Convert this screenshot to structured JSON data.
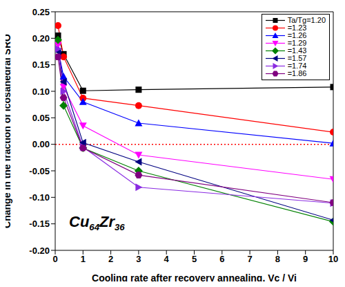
{
  "chart_data": {
    "type": "line",
    "annotation": "Cu64Zr36",
    "xlabel": "Cooling rate after recovery annealing, Vc / Vi",
    "ylabel": "Change in the fraction of icosahedral SRO",
    "x": [
      0.1,
      0.3,
      1,
      3,
      10
    ],
    "xlim": [
      0,
      10
    ],
    "xticks": [
      0,
      1,
      2,
      3,
      4,
      5,
      6,
      7,
      8,
      9,
      10
    ],
    "ylim": [
      -0.2,
      0.25
    ],
    "yticks": [
      {
        "value": -0.2,
        "label": "-0.20"
      },
      {
        "value": -0.15,
        "label": "-0.15"
      },
      {
        "value": -0.1,
        "label": "-0.10"
      },
      {
        "value": -0.05,
        "label": "-0.05"
      },
      {
        "value": 0,
        "label": "0.00"
      },
      {
        "value": 0.05,
        "label": "0.05"
      },
      {
        "value": 0.1,
        "label": "0.10"
      },
      {
        "value": 0.15,
        "label": "0.15"
      },
      {
        "value": 0.2,
        "label": "0.20"
      },
      {
        "value": 0.25,
        "label": "0.25"
      }
    ],
    "hlines": [
      {
        "value": 0,
        "color": "#ff0000",
        "line_style": "dotted"
      }
    ],
    "legend": "upper right",
    "series": [
      {
        "name": "Ta/Tg=1.20",
        "color": "#000000",
        "marker": "square",
        "values": [
          0.205,
          0.17,
          0.101,
          0.103,
          0.108
        ]
      },
      {
        "name": "=1.23",
        "color": "#ff0000",
        "marker": "circle",
        "values": [
          0.224,
          0.165,
          0.087,
          0.073,
          0.023
        ]
      },
      {
        "name": "=1.26",
        "color": "#0000ff",
        "marker": "triangle-up",
        "values": [
          0.18,
          0.128,
          0.08,
          0.04,
          0.002
        ]
      },
      {
        "name": "=1.29",
        "color": "#ff00ff",
        "marker": "triangle-down",
        "values": [
          0.187,
          0.108,
          0.035,
          -0.02,
          -0.066
        ]
      },
      {
        "name": "=1.43",
        "color": "#008000",
        "marker": "diamond",
        "values": [
          0.197,
          0.073,
          -0.007,
          -0.05,
          -0.146
        ]
      },
      {
        "name": "=1.57",
        "color": "#000080",
        "marker": "triangle-left",
        "values": [
          0.175,
          0.118,
          0.003,
          -0.033,
          -0.143
        ]
      },
      {
        "name": "=1.74",
        "color": "#8a2be2",
        "marker": "triangle-right",
        "values": [
          0.18,
          0.1,
          -0.005,
          -0.081,
          -0.111
        ]
      },
      {
        "name": "=1.86",
        "color": "#800080",
        "marker": "hexagon",
        "values": [
          0.165,
          0.088,
          -0.007,
          -0.058,
          -0.11
        ]
      }
    ]
  }
}
